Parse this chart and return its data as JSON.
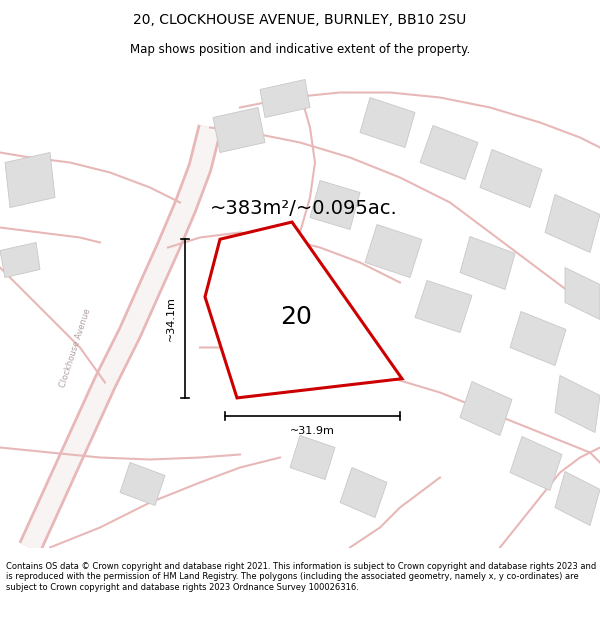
{
  "title": "20, CLOCKHOUSE AVENUE, BURNLEY, BB10 2SU",
  "subtitle": "Map shows position and indicative extent of the property.",
  "footer": "Contains OS data © Crown copyright and database right 2021. This information is subject to Crown copyright and database rights 2023 and is reproduced with the permission of HM Land Registry. The polygons (including the associated geometry, namely x, y co-ordinates) are subject to Crown copyright and database rights 2023 Ordnance Survey 100026316.",
  "area_label": "~383m²/~0.095ac.",
  "plot_number": "20",
  "dim_height": "~34.1m",
  "dim_width": "~31.9m",
  "map_bg": "#f5f2f2",
  "plot_fill": "#ffffff",
  "plot_outline": "#cc0000",
  "road_color": "#e8b8b8",
  "road_fill": "#f5f0f0",
  "building_color": "#dedede",
  "building_outline": "#c8c8c8",
  "title_fontsize": 10,
  "subtitle_fontsize": 8.5,
  "footer_fontsize": 6.0
}
